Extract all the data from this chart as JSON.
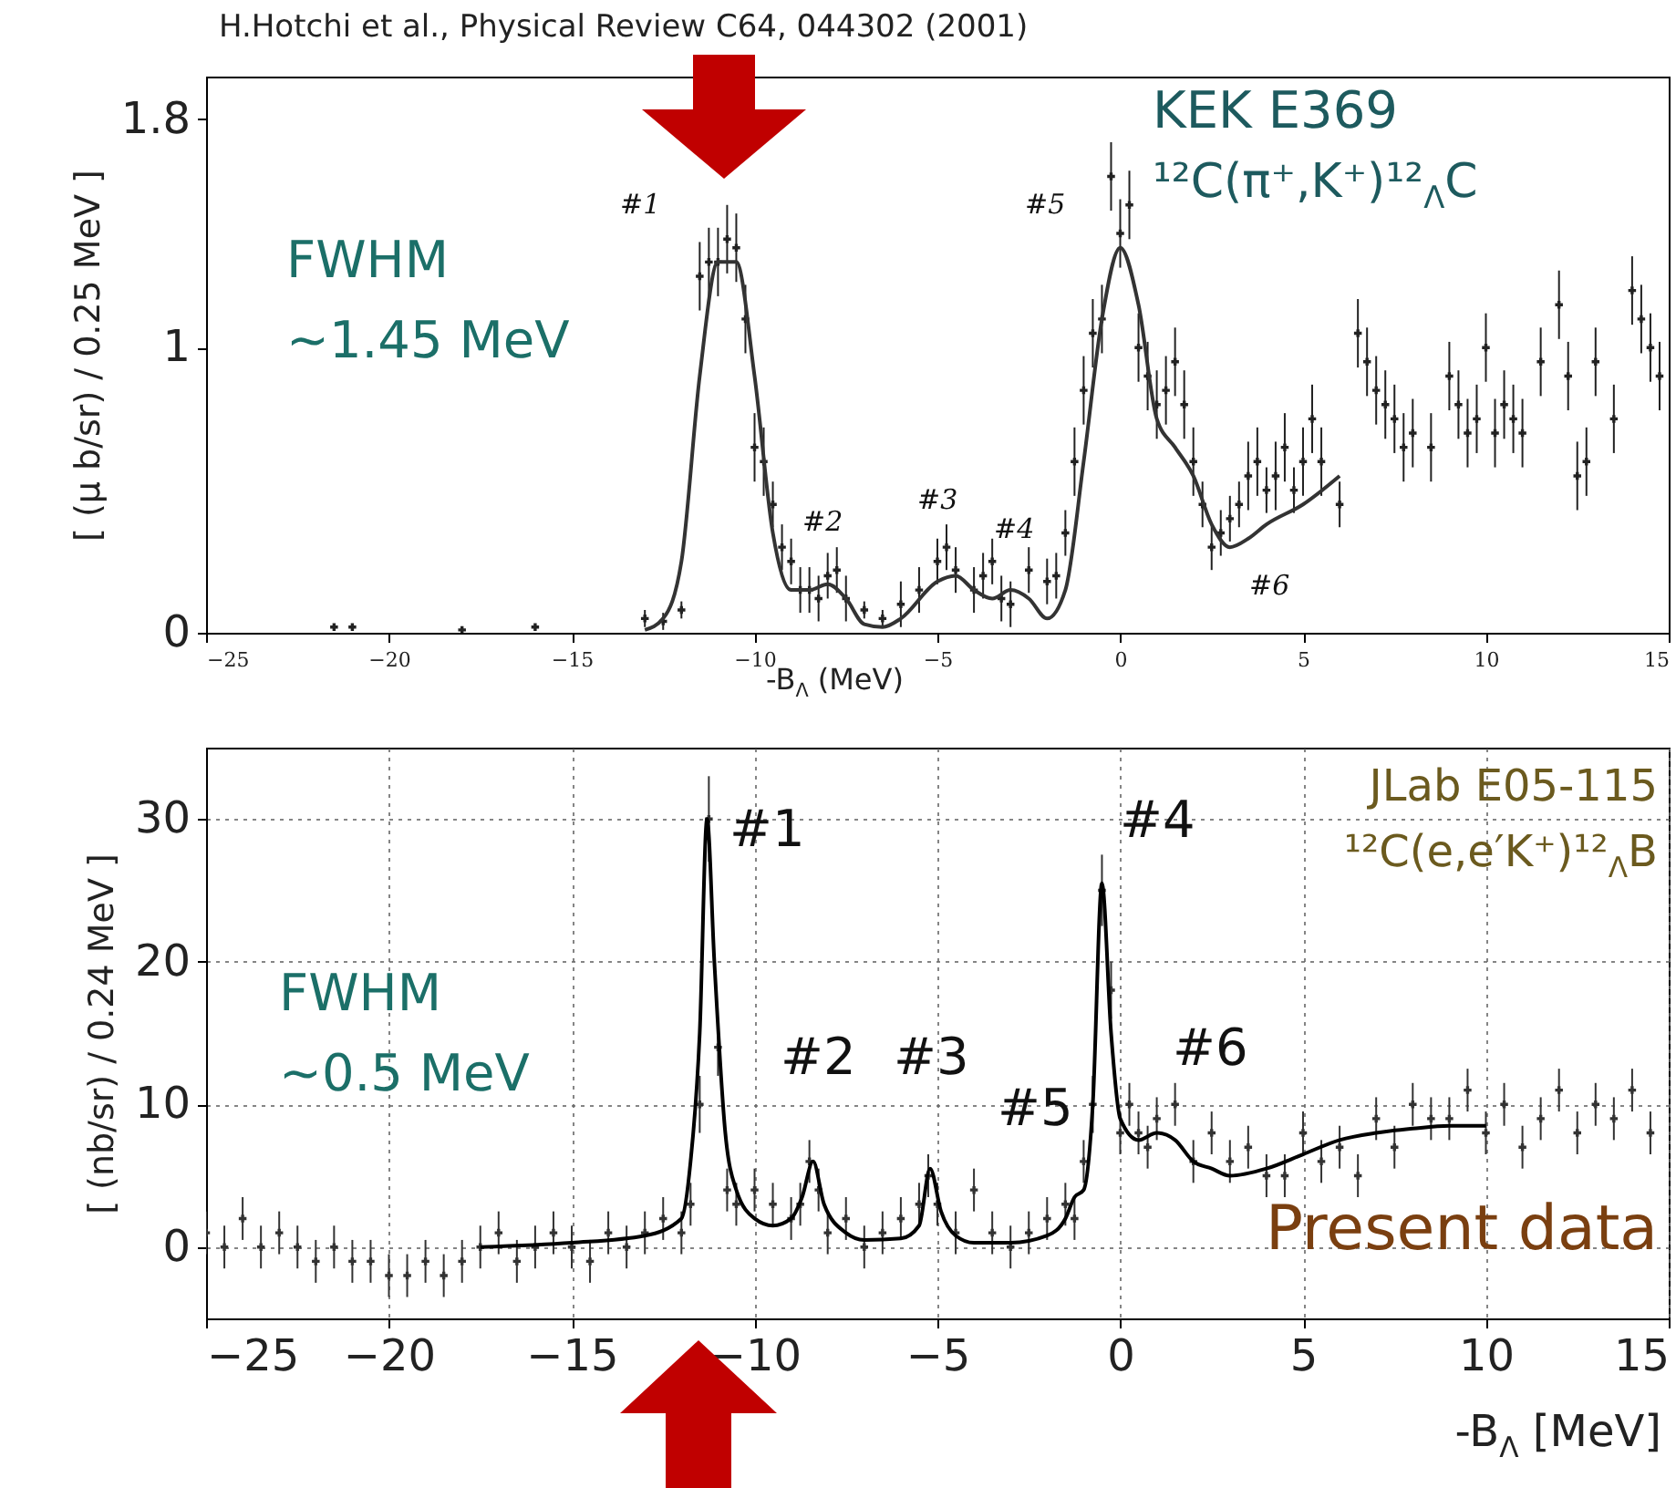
{
  "chart_data": [
    {
      "type": "scatter",
      "xlabel": "-B$_{Λ}$ (MeV)",
      "ylabel": "[ (μ b/sr) / 0.25 MeV ]",
      "xlim": [
        -25,
        15
      ],
      "xticks": [
        -25,
        -20,
        -15,
        -10,
        -5,
        0,
        5,
        10,
        15
      ],
      "ylim": [
        0,
        1.95
      ],
      "yticks": [
        0,
        1,
        1.8
      ],
      "annotations": [
        "H.Hotchi et al., Physical Review C64, 044302 (2001)",
        "FWHM",
        "~1.45 MeV",
        "KEK E369",
        "¹²C(π⁺,K⁺)¹²$_{Λ}$C",
        "#1",
        "#2",
        "#3",
        "#4",
        "#5",
        "#6"
      ],
      "series": [
        {
          "marker": "cross",
          "color": "#222222",
          "x": [
            -21.5,
            -21,
            -18,
            -16,
            -13,
            -12.5,
            -12,
            -11.5,
            -11.25,
            -11,
            -10.75,
            -10.5,
            -10.25,
            -10,
            -9.75,
            -9.5,
            -9.25,
            -9,
            -8.75,
            -8.5,
            -8.25,
            -8,
            -7.75,
            -7.5,
            -7,
            -6.5,
            -6,
            -5.5,
            -5,
            -4.75,
            -4.5,
            -4,
            -3.75,
            -3.5,
            -3.25,
            -3,
            -2.5,
            -2,
            -1.75,
            -1.5,
            -1.25,
            -1,
            -0.75,
            -0.5,
            -0.25,
            0,
            0.25,
            0.5,
            0.75,
            1,
            1.25,
            1.5,
            1.75,
            2,
            2.25,
            2.5,
            2.75,
            3,
            3.25,
            3.5,
            3.75,
            4,
            4.25,
            4.5,
            4.75,
            5,
            5.25,
            5.5,
            6,
            6.5,
            6.75,
            7,
            7.25,
            7.5,
            7.75,
            8,
            8.5,
            9,
            9.25,
            9.5,
            9.75,
            10,
            10.25,
            10.5,
            10.75,
            11,
            11.5,
            12,
            12.25,
            12.5,
            12.75,
            13,
            13.5,
            14,
            14.25,
            14.5,
            14.75
          ],
          "values": [
            0.02,
            0.02,
            0.01,
            0.02,
            0.05,
            0.04,
            0.08,
            1.25,
            1.3,
            1.3,
            1.38,
            1.35,
            1.1,
            0.65,
            0.6,
            0.45,
            0.3,
            0.25,
            0.15,
            0.15,
            0.12,
            0.2,
            0.22,
            0.12,
            0.08,
            0.05,
            0.1,
            0.15,
            0.25,
            0.3,
            0.22,
            0.15,
            0.2,
            0.25,
            0.12,
            0.1,
            0.22,
            0.18,
            0.2,
            0.35,
            0.6,
            0.85,
            1.05,
            1.1,
            1.6,
            1.4,
            1.5,
            1.0,
            0.9,
            0.8,
            0.85,
            0.95,
            0.8,
            0.6,
            0.45,
            0.3,
            0.35,
            0.4,
            0.45,
            0.55,
            0.6,
            0.5,
            0.55,
            0.65,
            0.5,
            0.6,
            0.75,
            0.6,
            0.45,
            1.05,
            0.95,
            0.85,
            0.8,
            0.75,
            0.65,
            0.7,
            0.65,
            0.9,
            0.8,
            0.7,
            0.75,
            1.0,
            0.7,
            0.8,
            0.75,
            0.7,
            0.95,
            1.15,
            0.9,
            0.55,
            0.6,
            0.95,
            0.75,
            1.2,
            1.1,
            1.0,
            0.9
          ],
          "errors": [
            null,
            null,
            null,
            null,
            0.03,
            0.03,
            0.03,
            0.12,
            0.12,
            0.12,
            0.12,
            0.12,
            0.12,
            0.12,
            0.12,
            0.08,
            0.08,
            0.08,
            0.08,
            0.08,
            0.08,
            0.08,
            0.08,
            0.08,
            0.03,
            0.03,
            0.08,
            0.08,
            0.08,
            0.08,
            0.08,
            0.08,
            0.08,
            0.08,
            0.08,
            0.08,
            0.08,
            0.08,
            0.08,
            0.08,
            0.12,
            0.12,
            0.12,
            0.12,
            0.12,
            0.12,
            0.12,
            0.12,
            0.12,
            0.12,
            0.12,
            0.12,
            0.12,
            0.12,
            0.08,
            0.08,
            0.08,
            0.08,
            0.08,
            0.12,
            0.12,
            0.08,
            0.12,
            0.12,
            0.08,
            0.12,
            0.12,
            0.12,
            0.08,
            0.12,
            0.12,
            0.12,
            0.12,
            0.12,
            0.12,
            0.12,
            0.12,
            0.12,
            0.12,
            0.12,
            0.12,
            0.12,
            0.12,
            0.12,
            0.12,
            0.12,
            0.12,
            0.12,
            0.12,
            0.12,
            0.12,
            0.12,
            0.12,
            0.12,
            0.12,
            0.12,
            0.12
          ]
        },
        {
          "type": "line",
          "color": "#333333",
          "x": [
            -13,
            -12.5,
            -12,
            -11.5,
            -11,
            -10.5,
            -10,
            -9.5,
            -9,
            -8.5,
            -8,
            -7.5,
            -7,
            -6.5,
            -6,
            -5,
            -4.5,
            -4,
            -3.5,
            -3,
            -2.5,
            -2,
            -1.5,
            -1,
            -0.5,
            0,
            0.5,
            1,
            1.5,
            2,
            2.5,
            3,
            3.5,
            4,
            5,
            6
          ],
          "values": [
            0.01,
            0.05,
            0.25,
            0.9,
            1.3,
            1.3,
            0.9,
            0.35,
            0.15,
            0.15,
            0.17,
            0.12,
            0.03,
            0.02,
            0.05,
            0.18,
            0.2,
            0.15,
            0.12,
            0.15,
            0.12,
            0.05,
            0.15,
            0.6,
            1.1,
            1.35,
            1.15,
            0.75,
            0.65,
            0.55,
            0.38,
            0.3,
            0.33,
            0.38,
            0.45,
            0.55
          ]
        }
      ]
    },
    {
      "type": "scatter",
      "xlabel": "-B$_{Λ}$ [MeV]",
      "ylabel": "[ (nb/sr) / 0.24 MeV ]",
      "xlim": [
        -25,
        15
      ],
      "xticks": [
        -25,
        -20,
        -15,
        -10,
        -5,
        0,
        5,
        10,
        15
      ],
      "ylim": [
        -5,
        35
      ],
      "yticks": [
        0,
        10,
        20,
        30
      ],
      "grid": true,
      "annotations": [
        "FWHM",
        "~0.5 MeV",
        "JLab E05-115",
        "¹²C(e,e′K⁺)¹²$_{Λ}$B",
        "Present data",
        "#1",
        "#2",
        "#3",
        "#4",
        "#5",
        "#6"
      ],
      "series": [
        {
          "marker": "cross",
          "color": "#333333",
          "x": [
            -25,
            -24.5,
            -24,
            -23.5,
            -23,
            -22.5,
            -22,
            -21.5,
            -21,
            -20.5,
            -20,
            -19.5,
            -19,
            -18.5,
            -18,
            -17.5,
            -17,
            -16.5,
            -16,
            -15.5,
            -15,
            -14.5,
            -14,
            -13.5,
            -13,
            -12.5,
            -12,
            -11.75,
            -11.5,
            -11.25,
            -11,
            -10.75,
            -10.5,
            -10,
            -9.5,
            -9,
            -8.75,
            -8.5,
            -8.25,
            -8,
            -7.5,
            -7,
            -6.5,
            -6,
            -5.5,
            -5.25,
            -5,
            -4.5,
            -4,
            -3.5,
            -3,
            -2.5,
            -2,
            -1.5,
            -1.25,
            -1,
            -0.75,
            -0.5,
            -0.25,
            0,
            0.25,
            0.5,
            0.75,
            1,
            1.5,
            2,
            2.5,
            3,
            3.5,
            4,
            4.5,
            5,
            5.5,
            6,
            6.5,
            7,
            7.5,
            8,
            8.5,
            9,
            9.5,
            10,
            10.5,
            11,
            11.5,
            12,
            12.5,
            13,
            13.5,
            14,
            14.5
          ],
          "values": [
            1,
            0,
            2,
            0,
            1,
            0,
            -1,
            0,
            -1,
            -1,
            -2,
            -2,
            -1,
            -2,
            -1,
            0,
            1,
            -1,
            0,
            1,
            0,
            -1,
            1,
            0,
            1,
            2,
            1,
            3,
            10,
            30,
            14,
            4,
            3,
            4,
            3,
            2,
            3,
            6,
            4,
            1,
            2,
            0,
            1,
            2,
            3,
            5,
            3,
            1,
            4,
            1,
            0,
            1,
            2,
            3,
            2,
            6,
            10,
            25,
            18,
            8,
            10,
            8,
            7,
            9,
            10,
            6,
            8,
            6,
            7,
            5,
            5,
            8,
            6,
            7,
            5,
            9,
            7,
            10,
            9,
            9,
            11,
            8,
            10,
            7,
            9,
            11,
            8,
            10,
            9,
            11,
            8
          ],
          "errors": [
            1.5,
            1.5,
            1.5,
            1.5,
            1.5,
            1.5,
            1.5,
            1.5,
            1.5,
            1.5,
            1.5,
            1.5,
            1.5,
            1.5,
            1.5,
            1.5,
            1.5,
            1.5,
            1.5,
            1.5,
            1.5,
            1.5,
            1.5,
            1.5,
            1.5,
            1.5,
            1.5,
            1.5,
            2,
            3,
            2,
            1.5,
            1.5,
            1.5,
            1.5,
            1.5,
            1.5,
            1.5,
            1.5,
            1.5,
            1.5,
            1.5,
            1.5,
            1.5,
            1.5,
            1.5,
            1.5,
            1.5,
            1.5,
            1.5,
            1.5,
            1.5,
            1.5,
            1.5,
            1.5,
            1.5,
            2,
            2.5,
            2,
            1.5,
            1.5,
            1.5,
            1.5,
            1.5,
            1.5,
            1.5,
            1.5,
            1.5,
            1.5,
            1.5,
            1.5,
            1.5,
            1.5,
            1.5,
            1.5,
            1.5,
            1.5,
            1.5,
            1.5,
            1.5,
            1.5,
            1.5,
            1.5,
            1.5,
            1.5,
            1.5,
            1.5,
            1.5,
            1.5,
            1.5,
            1.5
          ]
        },
        {
          "type": "line",
          "color": "#000000",
          "x": [
            -17.5,
            -15,
            -13,
            -12,
            -11.75,
            -11.5,
            -11.3,
            -11.1,
            -10.8,
            -10.5,
            -10,
            -9.5,
            -9,
            -8.7,
            -8.4,
            -8.1,
            -7.5,
            -7,
            -6,
            -5.5,
            -5.2,
            -4.9,
            -4.5,
            -4,
            -3,
            -2,
            -1.5,
            -1.25,
            -1,
            -0.75,
            -0.5,
            -0.25,
            0,
            0.5,
            1,
            1.5,
            2,
            2.5,
            3,
            4,
            5,
            6,
            7,
            8,
            9,
            10
          ],
          "values": [
            0,
            0.3,
            0.8,
            2,
            6,
            15,
            30,
            20,
            8,
            4,
            2,
            1.5,
            2,
            3.5,
            6,
            3,
            1,
            0.5,
            0.6,
            1.5,
            5.5,
            2.5,
            0.8,
            0.3,
            0.3,
            0.8,
            2,
            3.5,
            4,
            10,
            25.5,
            15,
            9,
            7.5,
            8,
            7.5,
            6,
            5.5,
            5,
            5.5,
            6.5,
            7.5,
            8,
            8.3,
            8.5,
            8.5
          ]
        }
      ]
    }
  ]
}
